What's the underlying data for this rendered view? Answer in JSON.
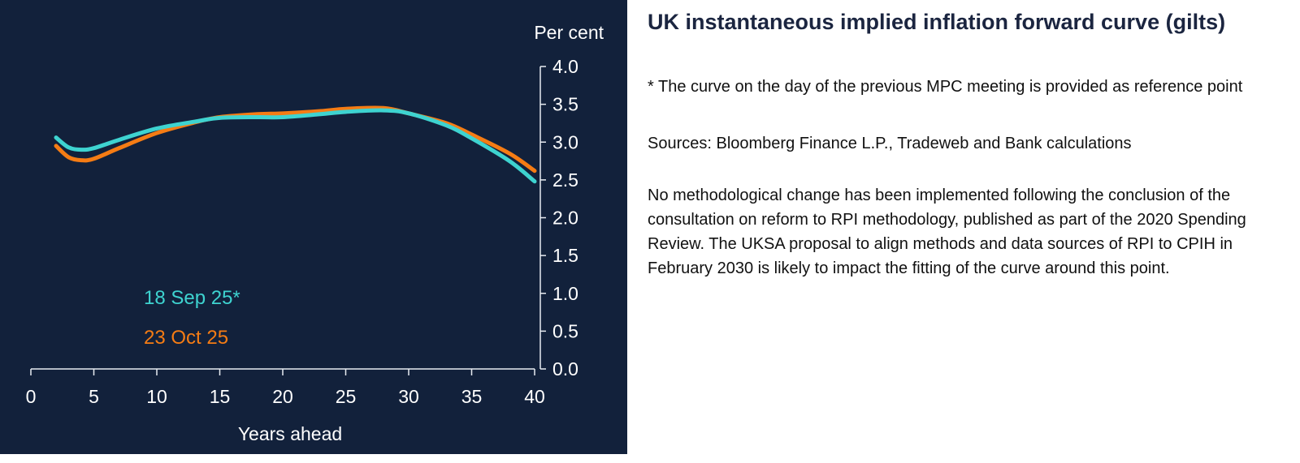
{
  "chart_data": {
    "type": "line",
    "ylabel": "Per cent",
    "xlabel": "Years ahead",
    "xlim": [
      0,
      40
    ],
    "ylim": [
      0,
      4
    ],
    "xticks": [
      "0",
      "5",
      "10",
      "15",
      "20",
      "25",
      "30",
      "35",
      "40"
    ],
    "yticks": [
      "0.0",
      "0.5",
      "1.0",
      "1.5",
      "2.0",
      "2.5",
      "3.0",
      "3.5",
      "4.0"
    ],
    "series": [
      {
        "name": "18 Sep 25*",
        "color": "#3ed3d0",
        "x": [
          2,
          3,
          4,
          5,
          7,
          10,
          13,
          15,
          18,
          20,
          23,
          25,
          28,
          30,
          33,
          35,
          38,
          40
        ],
        "y": [
          3.06,
          2.93,
          2.9,
          2.92,
          3.03,
          3.18,
          3.27,
          3.32,
          3.33,
          3.33,
          3.37,
          3.4,
          3.42,
          3.38,
          3.22,
          3.05,
          2.75,
          2.48
        ]
      },
      {
        "name": "23 Oct 25",
        "color": "#f57c14",
        "x": [
          2,
          3,
          4,
          5,
          7,
          10,
          13,
          15,
          18,
          20,
          23,
          25,
          28,
          30,
          33,
          35,
          38,
          40
        ],
        "y": [
          2.95,
          2.8,
          2.76,
          2.78,
          2.92,
          3.12,
          3.26,
          3.33,
          3.37,
          3.38,
          3.41,
          3.44,
          3.45,
          3.38,
          3.25,
          3.1,
          2.85,
          2.62
        ]
      }
    ]
  },
  "text": {
    "title": "UK instantaneous implied inflation forward curve (gilts)",
    "note": "* The curve on the day of the previous MPC meeting is provided as reference point",
    "sources": "Sources: Bloomberg Finance L.P., Tradeweb and Bank calculations",
    "body": "No methodological change has been implemented following the conclusion of the consultation on reform to RPI methodology, published as part of the 2020 Spending Review. The UKSA proposal to align methods and data sources of RPI to CPIH in February 2030 is likely to impact the fitting of the curve around this point."
  }
}
